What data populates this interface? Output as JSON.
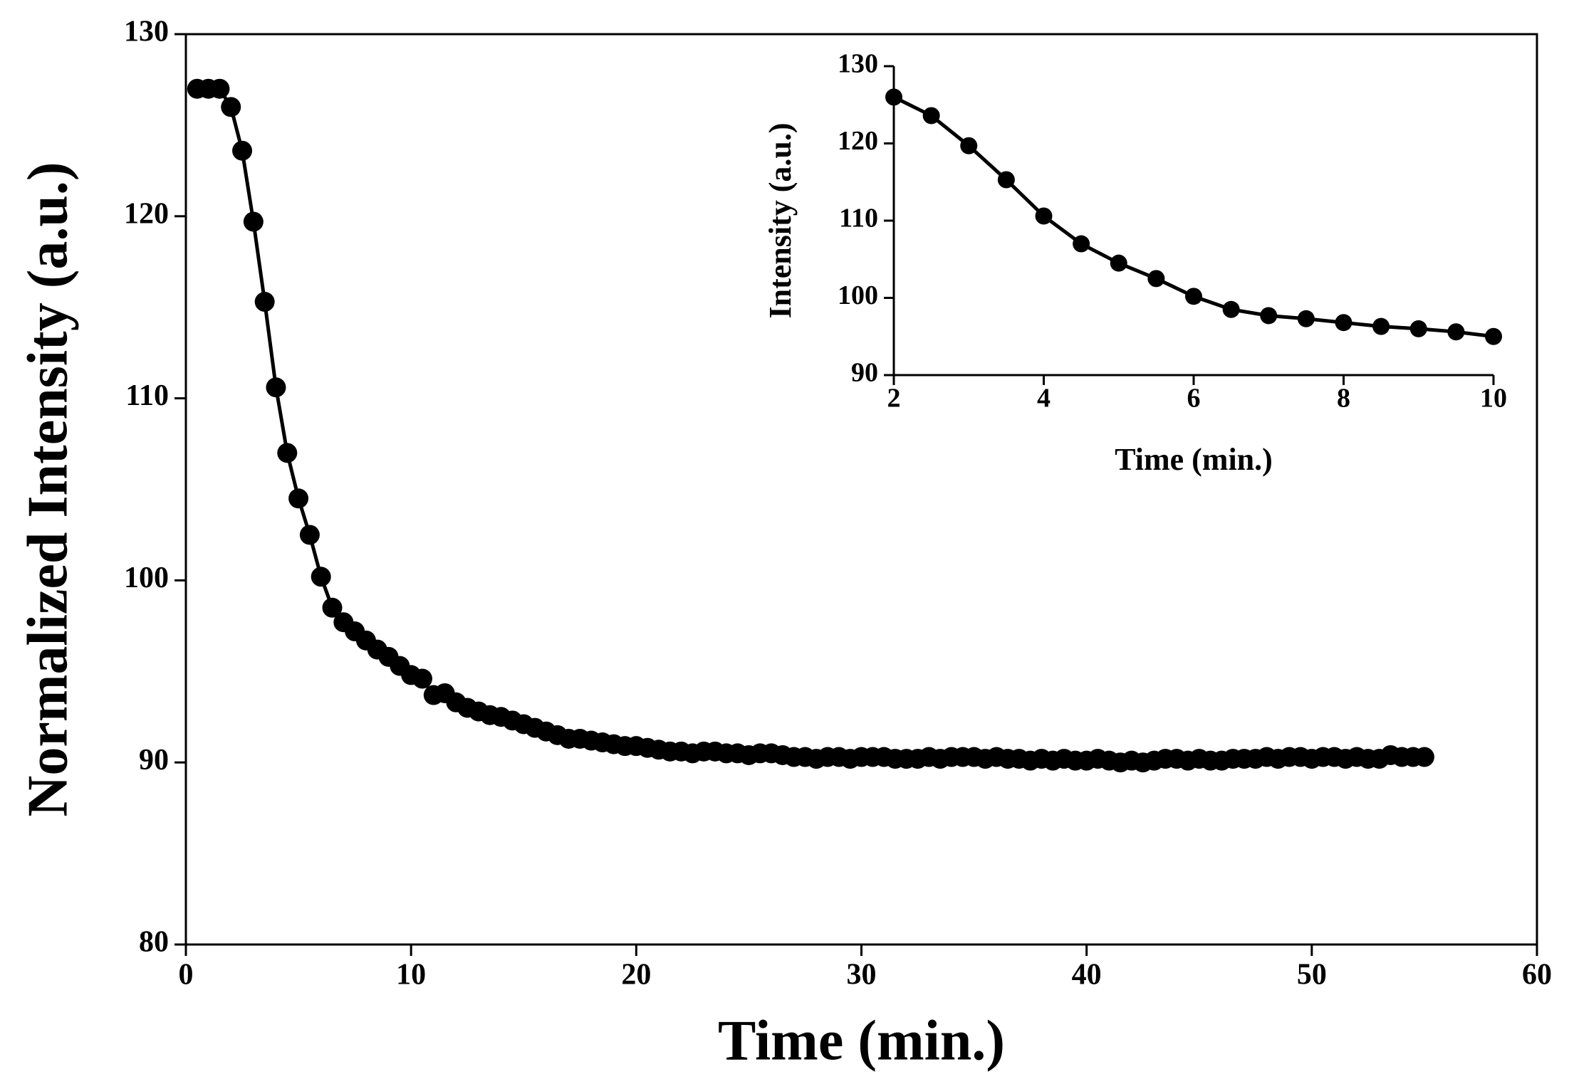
{
  "chart_data": [
    {
      "type": "line",
      "xlabel": "Time (min.)",
      "ylabel": "Normalized Intensity (a.u.)",
      "color": "#000000",
      "xlim": [
        0,
        60
      ],
      "xticks": [
        0,
        10,
        20,
        30,
        40,
        50,
        60
      ],
      "ylim": [
        80,
        130
      ],
      "yticks": [
        80,
        90,
        100,
        110,
        120,
        130
      ],
      "grid": false,
      "x": [
        0.5,
        1,
        1.5,
        2,
        2.5,
        3,
        3.5,
        4,
        4.5,
        5,
        5.5,
        6,
        6.5,
        7,
        7.5,
        8,
        8.5,
        9,
        9.5,
        10,
        10.5,
        11,
        11.5,
        12,
        12.5,
        13,
        13.5,
        14,
        14.5,
        15,
        15.5,
        16,
        16.5,
        17,
        17.5,
        18,
        18.5,
        19,
        19.5,
        20,
        20.5,
        21,
        21.5,
        22,
        22.5,
        23,
        23.5,
        24,
        24.5,
        25,
        25.5,
        26,
        26.5,
        27,
        27.5,
        28,
        28.5,
        29,
        29.5,
        30,
        30.5,
        31,
        31.5,
        32,
        32.5,
        33,
        33.5,
        34,
        34.5,
        35,
        35.5,
        36,
        36.5,
        37,
        37.5,
        38,
        38.5,
        39,
        39.5,
        40,
        40.5,
        41,
        41.5,
        42,
        42.5,
        43,
        43.5,
        44,
        44.5,
        45,
        45.5,
        46,
        46.5,
        47,
        47.5,
        48,
        48.5,
        49,
        49.5,
        50,
        50.5,
        51,
        51.5,
        52,
        52.5,
        53,
        53.5,
        54,
        54.5,
        55
      ],
      "values": [
        127,
        127,
        127,
        126,
        123.6,
        119.7,
        115.3,
        110.6,
        107,
        104.5,
        102.5,
        100.2,
        98.5,
        97.7,
        97.2,
        96.7,
        96.2,
        95.8,
        95.3,
        94.8,
        94.6,
        93.7,
        93.8,
        93.3,
        93.0,
        92.8,
        92.6,
        92.5,
        92.3,
        92.1,
        91.9,
        91.7,
        91.5,
        91.3,
        91.3,
        91.2,
        91.1,
        91.0,
        90.9,
        90.9,
        90.8,
        90.7,
        90.6,
        90.6,
        90.5,
        90.6,
        90.6,
        90.5,
        90.5,
        90.4,
        90.5,
        90.5,
        90.4,
        90.3,
        90.3,
        90.2,
        90.3,
        90.3,
        90.2,
        90.3,
        90.3,
        90.3,
        90.2,
        90.2,
        90.2,
        90.3,
        90.2,
        90.3,
        90.3,
        90.3,
        90.2,
        90.3,
        90.2,
        90.2,
        90.1,
        90.2,
        90.1,
        90.2,
        90.1,
        90.1,
        90.2,
        90.1,
        90.0,
        90.1,
        90.0,
        90.1,
        90.2,
        90.2,
        90.1,
        90.2,
        90.1,
        90.1,
        90.2,
        90.2,
        90.2,
        90.3,
        90.2,
        90.3,
        90.3,
        90.2,
        90.3,
        90.3,
        90.2,
        90.3,
        90.2,
        90.2,
        90.4,
        90.3,
        90.3,
        90.3
      ]
    },
    {
      "type": "line",
      "xlabel": "Time (min.)",
      "ylabel": "Intensity (a.u.)",
      "color": "#000000",
      "xlim": [
        2,
        10
      ],
      "xticks": [
        2,
        4,
        6,
        8,
        10
      ],
      "ylim": [
        90,
        130
      ],
      "yticks": [
        90,
        100,
        110,
        120,
        130
      ],
      "grid": false,
      "x": [
        2,
        2.5,
        3,
        3.5,
        4,
        4.5,
        5,
        5.5,
        6,
        6.5,
        7,
        7.5,
        8,
        8.5,
        9,
        9.5,
        10
      ],
      "values": [
        126,
        123.6,
        119.7,
        115.3,
        110.6,
        107,
        104.5,
        102.5,
        100.2,
        98.5,
        97.7,
        97.3,
        96.8,
        96.3,
        96.0,
        95.6,
        95.0
      ]
    }
  ]
}
